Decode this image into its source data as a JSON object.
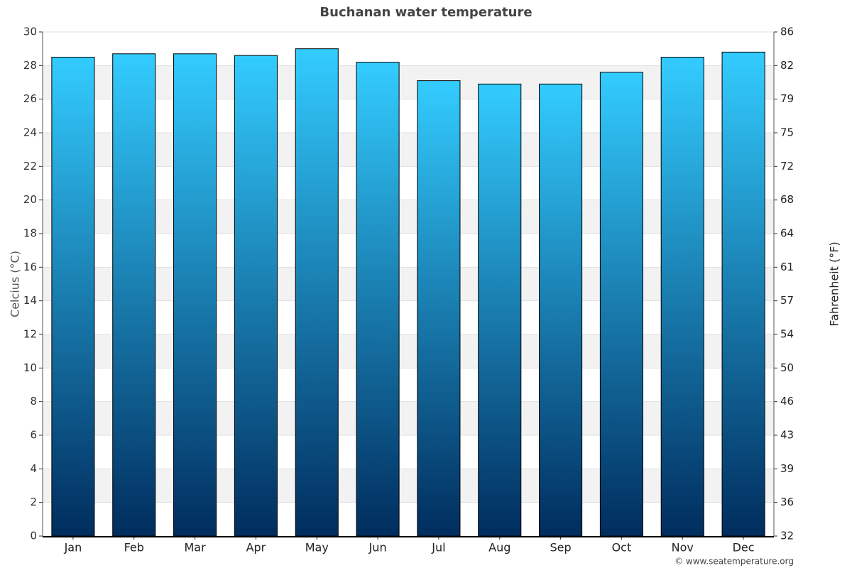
{
  "chart_data": {
    "type": "bar",
    "title": "Buchanan water temperature",
    "categories": [
      "Jan",
      "Feb",
      "Mar",
      "Apr",
      "May",
      "Jun",
      "Jul",
      "Aug",
      "Sep",
      "Oct",
      "Nov",
      "Dec"
    ],
    "values": [
      28.5,
      28.7,
      28.7,
      28.6,
      29.0,
      28.2,
      27.1,
      26.9,
      26.9,
      27.6,
      28.5,
      28.8
    ],
    "color": {
      "top": "#33ccff",
      "bottom": "#002d5e"
    },
    "y_label": "Celcius (°C)",
    "y2_label": "Fahrenheit (°F)",
    "ylim": [
      0,
      30
    ],
    "yticks": [
      0,
      2,
      4,
      6,
      8,
      10,
      12,
      14,
      16,
      18,
      20,
      22,
      24,
      26,
      28,
      30
    ],
    "y2lim": [
      32,
      86
    ],
    "y2ticks": [
      32,
      {
        "value": 35.6,
        "label": "36"
      },
      {
        "value": 39.2,
        "label": "39"
      },
      {
        "value": 42.8,
        "label": "43"
      },
      {
        "value": 46.4,
        "label": "46"
      },
      50,
      {
        "value": 53.6,
        "label": "54"
      },
      {
        "value": 57.2,
        "label": "57"
      },
      {
        "value": 60.8,
        "label": "61"
      },
      {
        "value": 64.4,
        "label": "64"
      },
      68,
      {
        "value": 71.6,
        "label": "72"
      },
      {
        "value": 75.2,
        "label": "75"
      },
      {
        "value": 78.8,
        "label": "79"
      },
      {
        "value": 82.4,
        "label": "82"
      },
      86
    ],
    "grid": true,
    "credit": "© www.seatemperature.org"
  }
}
